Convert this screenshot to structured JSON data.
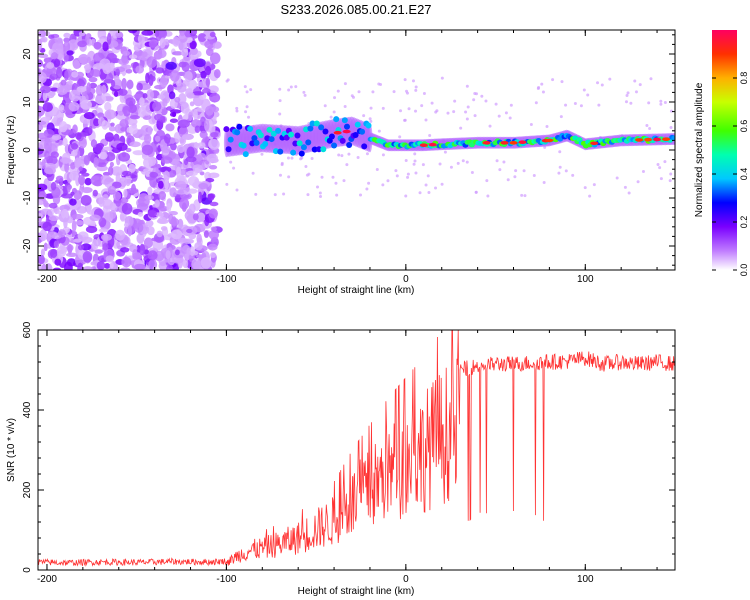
{
  "title": "S233.2026.085.00.21.E27",
  "chart_data": [
    {
      "type": "heatmap",
      "xlabel": "Height of straight line (km)",
      "ylabel": "Frequency (Hz)",
      "xlim": [
        -205,
        150
      ],
      "ylim": [
        -25,
        25
      ],
      "xticks": [
        -200,
        -100,
        0,
        100
      ],
      "yticks": [
        -20,
        -10,
        0,
        10,
        20
      ],
      "colorbar": {
        "label": "Normalized spectral amplitude",
        "range": [
          0,
          1
        ],
        "ticks": [
          0.0,
          0.2,
          0.4,
          0.6,
          0.8
        ]
      },
      "ridge": {
        "description_points_x": [
          -100,
          -80,
          -60,
          -40,
          -30,
          -20,
          -10,
          0,
          10,
          20,
          40,
          60,
          80,
          90,
          100,
          120,
          150
        ],
        "frequency_hz": [
          1.5,
          2.5,
          2.0,
          3.5,
          4.0,
          2.5,
          1.0,
          1.0,
          1.0,
          1.2,
          1.5,
          1.5,
          2.0,
          3.0,
          1.2,
          2.0,
          2.3
        ]
      }
    },
    {
      "type": "line",
      "xlabel": "Height of straight line (km)",
      "ylabel": "SNR (10 * v/v)",
      "xlim": [
        -205,
        150
      ],
      "ylim": [
        0,
        600
      ],
      "xticks": [
        -200,
        -100,
        0,
        100
      ],
      "yticks": [
        0,
        200,
        400,
        600
      ],
      "series": [
        {
          "name": "SNR",
          "color": "#ff3333",
          "x": [
            -205,
            -190,
            -170,
            -150,
            -130,
            -110,
            -100,
            -95,
            -90,
            -85,
            -80,
            -70,
            -60,
            -50,
            -40,
            -30,
            -20,
            -10,
            0,
            10,
            20,
            30,
            40,
            50,
            60,
            70,
            80,
            90,
            100,
            110,
            120,
            130,
            140,
            150
          ],
          "y": [
            20,
            18,
            20,
            19,
            21,
            20,
            22,
            45,
            60,
            70,
            75,
            90,
            110,
            140,
            170,
            230,
            280,
            330,
            370,
            410,
            460,
            500,
            510,
            515,
            515,
            518,
            520,
            522,
            530,
            515,
            520,
            515,
            520,
            515
          ]
        }
      ]
    }
  ]
}
